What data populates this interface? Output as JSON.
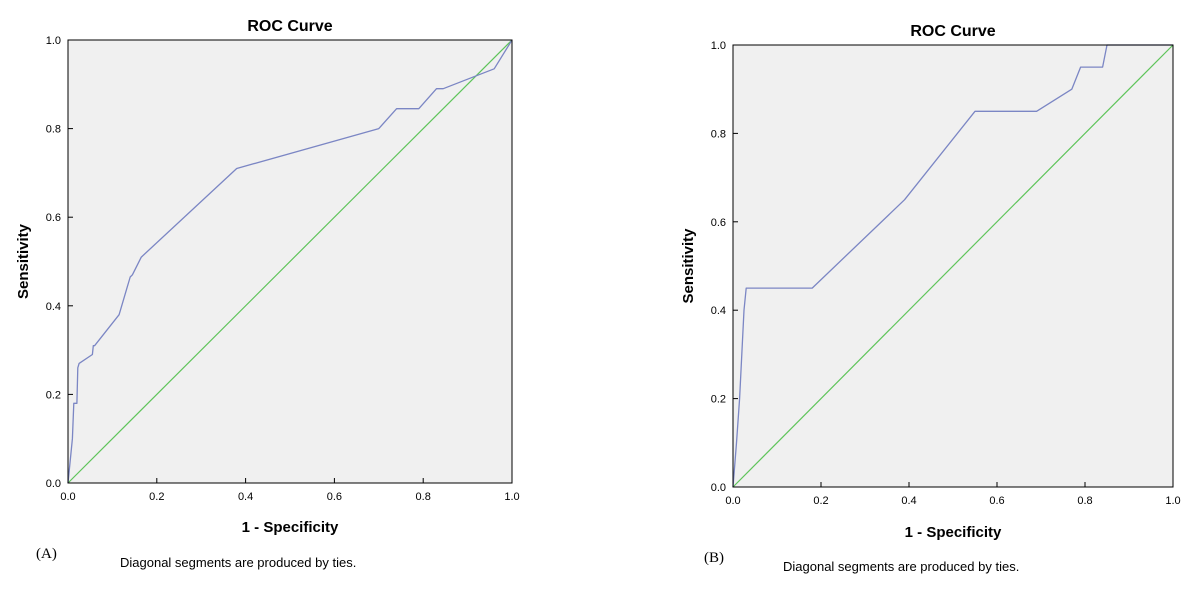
{
  "chart_data": [
    {
      "type": "line",
      "panel_label": "(A)",
      "title": "ROC Curve",
      "xlabel": "1 - Specificity",
      "ylabel": "Sensitivity",
      "footnote": "Diagonal segments are produced by ties.",
      "xlim": [
        0,
        1
      ],
      "ylim": [
        0,
        1
      ],
      "xticks": [
        "0.0",
        "0.2",
        "0.4",
        "0.6",
        "0.8",
        "1.0"
      ],
      "yticks": [
        "0.0",
        "0.2",
        "0.4",
        "0.6",
        "0.8",
        "1.0"
      ],
      "grid": false,
      "colors": {
        "curve": "#7b86c4",
        "reference": "#5ec45a",
        "plot_bg": "#f0f0f0",
        "frame": "#000000"
      },
      "series": [
        {
          "name": "roc-curve",
          "x": [
            0,
            0.01,
            0.013,
            0.02,
            0.022,
            0.025,
            0.055,
            0.057,
            0.06,
            0.115,
            0.14,
            0.145,
            0.165,
            0.38,
            0.7,
            0.74,
            0.79,
            0.83,
            0.845,
            0.96,
            1.0
          ],
          "y": [
            0,
            0.1,
            0.18,
            0.18,
            0.26,
            0.27,
            0.29,
            0.31,
            0.31,
            0.38,
            0.465,
            0.47,
            0.51,
            0.71,
            0.8,
            0.845,
            0.845,
            0.89,
            0.89,
            0.935,
            1.0
          ]
        },
        {
          "name": "reference-line",
          "x": [
            0,
            1
          ],
          "y": [
            0,
            1
          ]
        }
      ]
    },
    {
      "type": "line",
      "panel_label": "(B)",
      "title": "ROC Curve",
      "xlabel": "1 - Specificity",
      "ylabel": "Sensitivity",
      "footnote": "Diagonal segments are produced by ties.",
      "xlim": [
        0,
        1
      ],
      "ylim": [
        0,
        1
      ],
      "xticks": [
        "0.0",
        "0.2",
        "0.4",
        "0.6",
        "0.8",
        "1.0"
      ],
      "yticks": [
        "0.0",
        "0.2",
        "0.4",
        "0.6",
        "0.8",
        "1.0"
      ],
      "grid": false,
      "colors": {
        "curve": "#7b86c4",
        "reference": "#5ec45a",
        "plot_bg": "#f0f0f0",
        "frame": "#000000"
      },
      "series": [
        {
          "name": "roc-curve",
          "x": [
            0,
            0.008,
            0.015,
            0.02,
            0.025,
            0.03,
            0.18,
            0.39,
            0.55,
            0.69,
            0.77,
            0.79,
            0.84,
            0.85,
            1.0
          ],
          "y": [
            0,
            0.1,
            0.2,
            0.3,
            0.4,
            0.45,
            0.45,
            0.65,
            0.85,
            0.85,
            0.9,
            0.95,
            0.95,
            1.0,
            1.0
          ]
        },
        {
          "name": "reference-line",
          "x": [
            0,
            1
          ],
          "y": [
            0,
            1
          ]
        }
      ]
    }
  ]
}
